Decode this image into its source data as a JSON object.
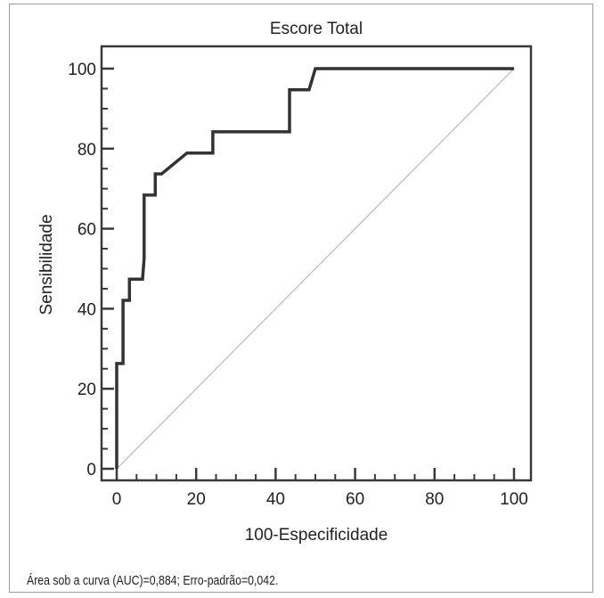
{
  "chart_data": {
    "type": "line",
    "title": "Escore Total",
    "xlabel": "100-Especificidade",
    "ylabel": "Sensibilidade",
    "xlim": [
      0,
      100
    ],
    "ylim": [
      0,
      100
    ],
    "x_ticks": [
      0,
      20,
      40,
      60,
      80,
      100
    ],
    "y_ticks": [
      0,
      20,
      40,
      60,
      80,
      100
    ],
    "grid": false,
    "legend": "none",
    "series": [
      {
        "role": "roc-curve",
        "color": "#333333",
        "points": [
          [
            0,
            0
          ],
          [
            0,
            26.3
          ],
          [
            1.6,
            26.3
          ],
          [
            1.6,
            42.1
          ],
          [
            3.2,
            42.1
          ],
          [
            3.2,
            47.4
          ],
          [
            6.5,
            47.4
          ],
          [
            6.9,
            52.6
          ],
          [
            6.9,
            68.4
          ],
          [
            9.7,
            68.4
          ],
          [
            9.7,
            73.7
          ],
          [
            11.3,
            73.7
          ],
          [
            17.7,
            78.9
          ],
          [
            24.2,
            78.9
          ],
          [
            24.2,
            84.2
          ],
          [
            43.5,
            84.2
          ],
          [
            43.5,
            94.7
          ],
          [
            48.4,
            94.7
          ],
          [
            50.0,
            100
          ],
          [
            100,
            100
          ]
        ]
      },
      {
        "role": "reference-diagonal",
        "color": "#b8b8b8",
        "points": [
          [
            0,
            0
          ],
          [
            100,
            100
          ]
        ]
      }
    ]
  },
  "caption": "Área sob a curva (AUC)=0,884; Erro-padrão=0,042."
}
